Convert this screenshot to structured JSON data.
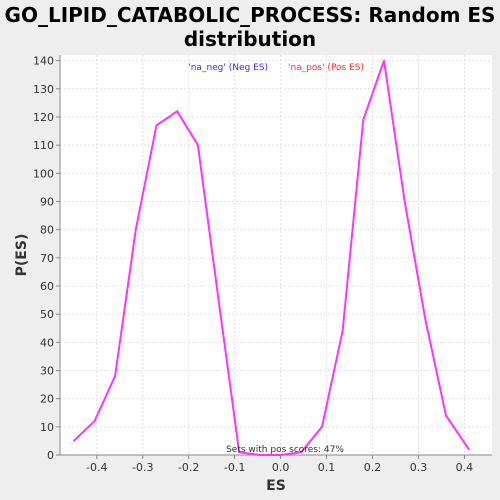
{
  "title_line1": "GO_LIPID_CATABOLIC_PROCESS: Random ES",
  "title_line2": "distribution",
  "colors": {
    "neg": "#3333ff",
    "pos": "#ff3333",
    "line": "#ff33ff"
  },
  "chart_data": {
    "type": "line",
    "xlabel": "ES",
    "ylabel": "P(ES)",
    "xlim": [
      -0.48,
      0.46
    ],
    "ylim": [
      0,
      142
    ],
    "xticks": [
      -0.4,
      -0.3,
      -0.2,
      -0.1,
      0.0,
      0.1,
      0.2,
      0.3,
      0.4
    ],
    "xtick_labels": [
      "-0.4",
      "-0.3",
      "-0.2",
      "-0.1",
      "0.0",
      "0.1",
      "0.2",
      "0.3",
      "0.4"
    ],
    "yticks": [
      0,
      10,
      20,
      30,
      40,
      50,
      60,
      70,
      80,
      90,
      100,
      110,
      120,
      130,
      140
    ],
    "grid": true,
    "legend": [
      "'na_neg' (Neg ES)",
      "'na_pos' (Pos ES)"
    ],
    "annotation": "Sets with pos scores: 47%",
    "x": [
      -0.45,
      -0.405,
      -0.36,
      -0.315,
      -0.27,
      -0.225,
      -0.18,
      -0.135,
      -0.09,
      -0.045,
      0.0,
      0.045,
      0.09,
      0.135,
      0.18,
      0.225,
      0.27,
      0.315,
      0.36,
      0.41
    ],
    "y": [
      5,
      12,
      28,
      80,
      117,
      122,
      110,
      55,
      1,
      0,
      0,
      1,
      10,
      44,
      119,
      140,
      90,
      48,
      14,
      2
    ]
  }
}
